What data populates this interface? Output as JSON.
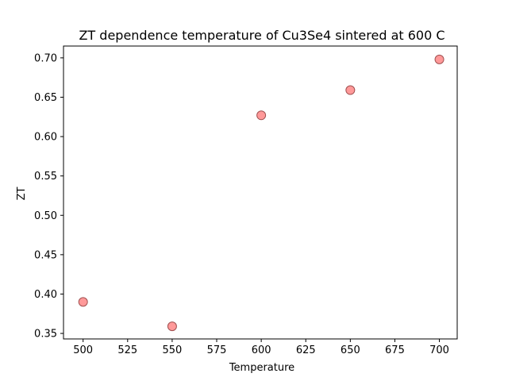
{
  "chart_data": {
    "type": "scatter",
    "title": "ZT dependence temperature of Cu3Se4 sintered at 600 C",
    "xlabel": "Temperature",
    "ylabel": "ZT",
    "x": [
      500,
      550,
      600,
      650,
      700
    ],
    "y": [
      0.39,
      0.359,
      0.627,
      0.659,
      0.698
    ],
    "xlim": [
      489,
      710
    ],
    "ylim": [
      0.343,
      0.715
    ],
    "xticks": [
      500,
      525,
      550,
      575,
      600,
      625,
      650,
      675,
      700
    ],
    "yticks": [
      0.35,
      0.4,
      0.45,
      0.5,
      0.55,
      0.6,
      0.65,
      0.7
    ],
    "xtick_labels": [
      "500",
      "525",
      "550",
      "575",
      "600",
      "625",
      "650",
      "675",
      "700"
    ],
    "ytick_labels": [
      "0.35",
      "0.40",
      "0.45",
      "0.50",
      "0.55",
      "0.60",
      "0.65",
      "0.70"
    ],
    "marker_color": "#ff8080",
    "marker_edge_color": "#a05050",
    "grid": false,
    "legend": "none"
  }
}
